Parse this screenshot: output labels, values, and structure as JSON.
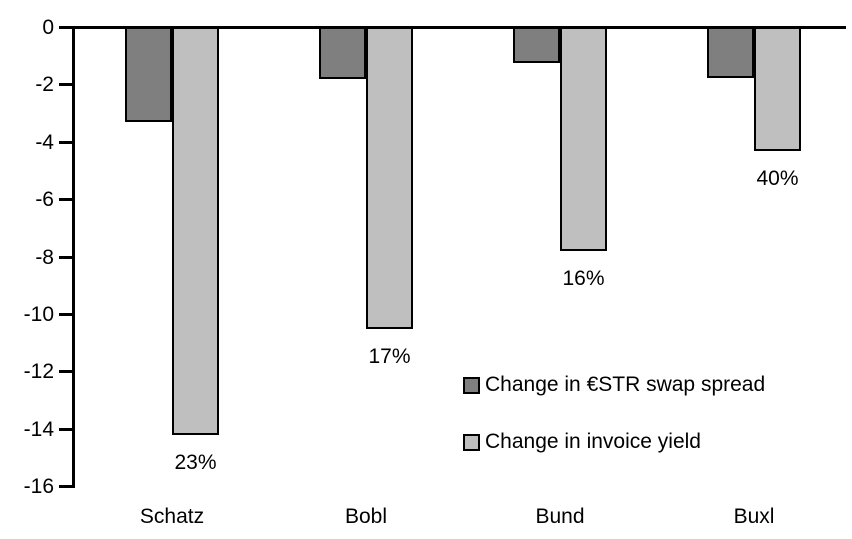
{
  "chart_data": {
    "type": "bar",
    "orientation": "vertical",
    "title": "",
    "xlabel": "",
    "ylabel": "",
    "categories": [
      "Schatz",
      "Bobl",
      "Bund",
      "Buxl"
    ],
    "series": [
      {
        "name": "Change in €STR swap spread",
        "color": "#7F7F7F",
        "values": [
          -3.3,
          -1.8,
          -1.25,
          -1.75
        ]
      },
      {
        "name": "Change in invoice yield",
        "color": "#BFBFBF",
        "values": [
          -14.2,
          -10.5,
          -7.8,
          -4.3
        ]
      }
    ],
    "bar_labels": {
      "attached_to_series": "Change in invoice yield",
      "values": [
        "23%",
        "17%",
        "16%",
        "40%"
      ]
    },
    "ylim": [
      -16,
      0
    ],
    "ytick_step": 2,
    "ytick_labels": [
      "0",
      "-2",
      "-4",
      "-6",
      "-8",
      "-10",
      "-12",
      "-14",
      "-16"
    ],
    "grid": false,
    "legend_position": "inside-lower-right",
    "bar_border_color": "#000000",
    "axis_color": "#000000",
    "background_color": "#FFFFFF"
  }
}
